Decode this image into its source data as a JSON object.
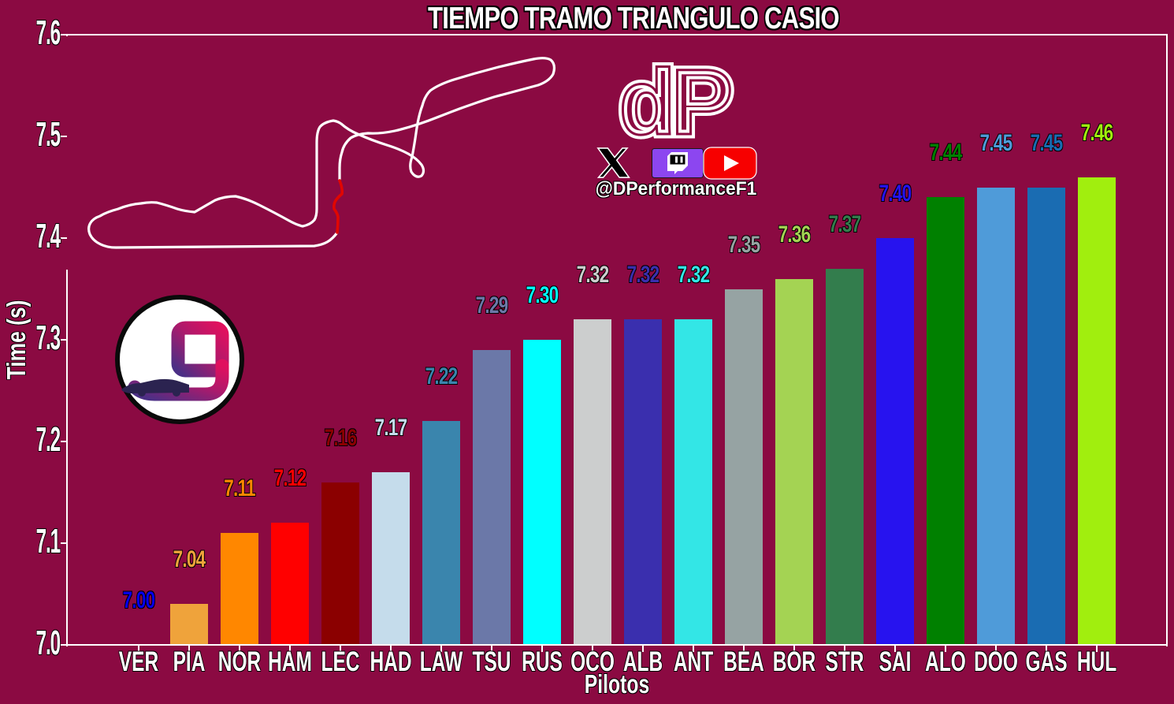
{
  "title": "TIEMPO TRAMO TRIANGULO CASIO",
  "branding": {
    "handle": "@DPerformanceF1",
    "logo_text": "dP",
    "icons": [
      "dp-logo",
      "x-logo",
      "twitch-logo",
      "youtube-logo",
      "track-map",
      "team-g-logo"
    ]
  },
  "colors": {
    "background": "#8B0A42",
    "axis": "#FFFFFF",
    "track_line": "#FFFFFF",
    "track_sector_highlight": "#E10600",
    "twitch_purple": "#8C46F0",
    "youtube_red": "#F70000",
    "x_logo_black": "#000000"
  },
  "chart_data": {
    "type": "bar",
    "title": "TIEMPO TRAMO TRIANGULO CASIO",
    "xlabel": "Pilotos",
    "ylabel": "Time (s)",
    "ylim": [
      7.0,
      7.6
    ],
    "yticks": [
      "7.0",
      "7.1",
      "7.2",
      "7.3",
      "7.4",
      "7.5",
      "7.6"
    ],
    "grid": false,
    "legend_position": "none",
    "categories": [
      "VER",
      "PIA",
      "NOR",
      "HAM",
      "LEC",
      "HAD",
      "LAW",
      "TSU",
      "RUS",
      "OCO",
      "ALB",
      "ANT",
      "BEA",
      "BOR",
      "STR",
      "SAI",
      "ALO",
      "DOO",
      "GAS",
      "HUL"
    ],
    "values": [
      7.0,
      7.04,
      7.11,
      7.12,
      7.16,
      7.17,
      7.22,
      7.29,
      7.3,
      7.32,
      7.32,
      7.32,
      7.35,
      7.36,
      7.37,
      7.4,
      7.44,
      7.45,
      7.45,
      7.46
    ],
    "value_labels": [
      "7.00",
      "7.04",
      "7.11",
      "7.12",
      "7.16",
      "7.17",
      "7.22",
      "7.29",
      "7.30",
      "7.32",
      "7.32",
      "7.32",
      "7.35",
      "7.36",
      "7.37",
      "7.40",
      "7.44",
      "7.45",
      "7.45",
      "7.46"
    ],
    "bar_colors": [
      "#0600EF",
      "#EFA33B",
      "#FF8700",
      "#FF0000",
      "#8B0000",
      "#C5DCEB",
      "#3A85AD",
      "#6B78A8",
      "#00FFFF",
      "#CCCECE",
      "#3A2FAE",
      "#33E6E6",
      "#96A3A3",
      "#A4D353",
      "#337D4D",
      "#2713EF",
      "#008000",
      "#4F9BD9",
      "#1A6CB2",
      "#A1EE0E"
    ]
  }
}
